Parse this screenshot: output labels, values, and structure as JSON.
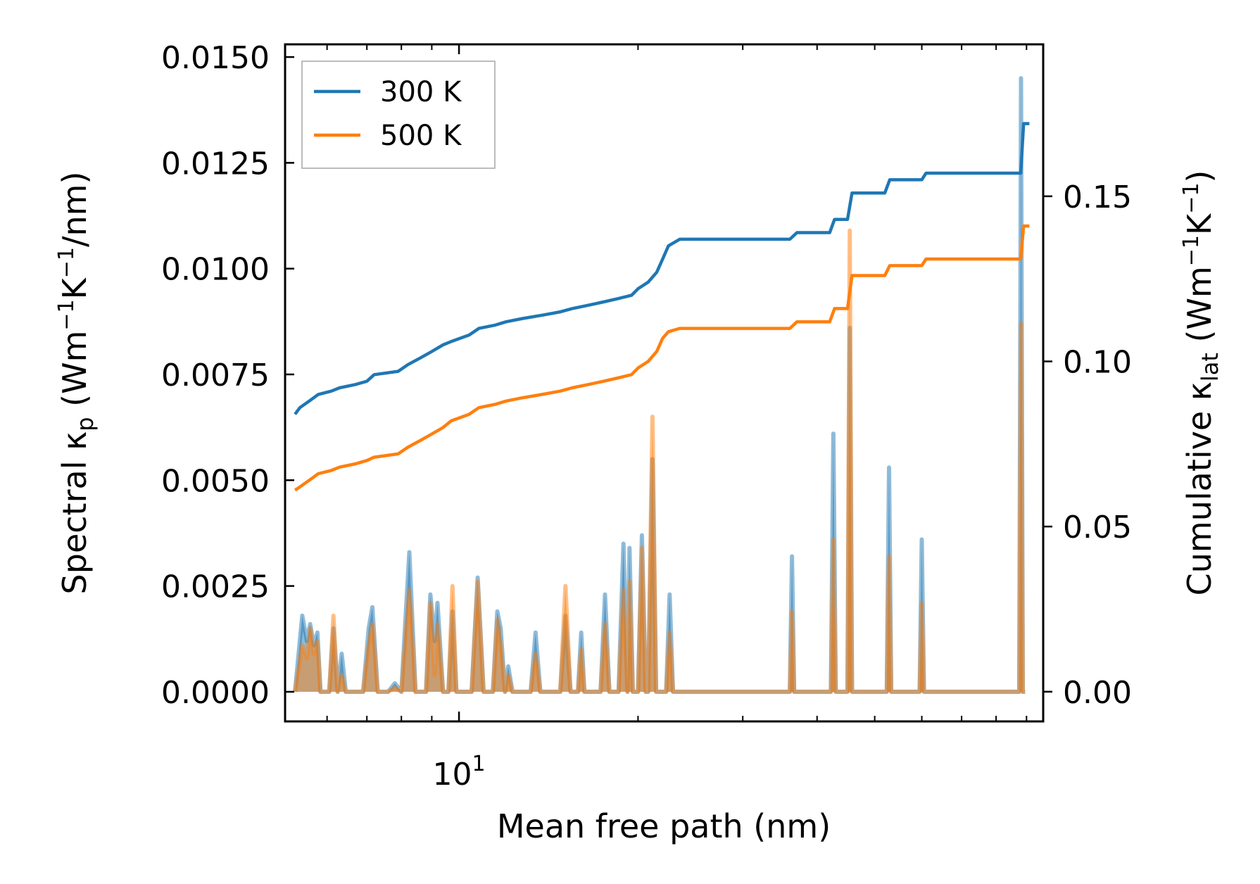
{
  "chart_data": {
    "type": "line",
    "xscale": "log",
    "xlabel": "Mean free path (nm)",
    "xlim": [
      5.1,
      96
    ],
    "x_major_tick_labels": [
      {
        "value": 10,
        "base": "10",
        "exp": "1"
      }
    ],
    "x_minor_ticks": [
      6,
      7,
      8,
      9,
      20,
      30,
      40,
      50,
      60,
      70,
      80,
      90
    ],
    "left_axis": {
      "label_prefix": "Spectral κ",
      "label_sub": "p",
      "label_unit_1": " (Wm",
      "label_sup_1": "−1",
      "label_unit_2": "K",
      "label_sup_2": "−1",
      "label_unit_3": "/nm)",
      "ylim": [
        -0.0007,
        0.0153
      ],
      "ticks": [
        0.0,
        0.0025,
        0.005,
        0.0075,
        0.01,
        0.0125,
        0.015
      ],
      "tick_labels": [
        "0.0000",
        "0.0025",
        "0.0050",
        "0.0075",
        "0.0100",
        "0.0125",
        "0.0150"
      ]
    },
    "right_axis": {
      "label_prefix": "Cumulative κ",
      "label_sub": "lat",
      "label_unit_1": " (Wm",
      "label_sup_1": "−1",
      "label_unit_2": "K",
      "label_sup_2": "−1",
      "label_unit_3": ")",
      "ylim": [
        -0.009,
        0.196
      ],
      "ticks": [
        0.0,
        0.05,
        0.1,
        0.15
      ],
      "tick_labels": [
        "0.00",
        "0.05",
        "0.10",
        "0.15"
      ]
    },
    "legend": {
      "placement": "top-left",
      "entries": [
        "300 K",
        "500 K"
      ]
    },
    "series": [
      {
        "name": "300 K",
        "color": "#1f77b4",
        "cumulative": [
          [
            5.3,
            0.084
          ],
          [
            5.4,
            0.086
          ],
          [
            5.6,
            0.088
          ],
          [
            5.8,
            0.09
          ],
          [
            6.1,
            0.091
          ],
          [
            6.3,
            0.092
          ],
          [
            6.7,
            0.093
          ],
          [
            7.0,
            0.094
          ],
          [
            7.2,
            0.096
          ],
          [
            7.9,
            0.097
          ],
          [
            8.2,
            0.099
          ],
          [
            8.6,
            0.101
          ],
          [
            9.0,
            0.103
          ],
          [
            9.4,
            0.105
          ],
          [
            9.7,
            0.106
          ],
          [
            10.4,
            0.108
          ],
          [
            10.8,
            0.11
          ],
          [
            11.5,
            0.111
          ],
          [
            12.0,
            0.112
          ],
          [
            12.8,
            0.113
          ],
          [
            13.8,
            0.114
          ],
          [
            14.8,
            0.115
          ],
          [
            15.5,
            0.116
          ],
          [
            16.5,
            0.117
          ],
          [
            17.5,
            0.118
          ],
          [
            18.5,
            0.119
          ],
          [
            19.5,
            0.12
          ],
          [
            20.0,
            0.122
          ],
          [
            20.8,
            0.124
          ],
          [
            21.5,
            0.127
          ],
          [
            22.0,
            0.131
          ],
          [
            22.5,
            0.135
          ],
          [
            23.5,
            0.137
          ],
          [
            27.0,
            0.137
          ],
          [
            36.0,
            0.137
          ],
          [
            37.0,
            0.139
          ],
          [
            42.0,
            0.139
          ],
          [
            42.8,
            0.143
          ],
          [
            45.0,
            0.143
          ],
          [
            45.8,
            0.151
          ],
          [
            52.0,
            0.151
          ],
          [
            53.0,
            0.155
          ],
          [
            60.0,
            0.155
          ],
          [
            61.0,
            0.157
          ],
          [
            88.0,
            0.157
          ],
          [
            89.0,
            0.172
          ],
          [
            91.0,
            0.172
          ]
        ],
        "spectral": [
          [
            5.3,
            0.0
          ],
          [
            5.45,
            0.0018
          ],
          [
            5.55,
            0.0012
          ],
          [
            5.62,
            0.0016
          ],
          [
            5.7,
            0.0011
          ],
          [
            5.78,
            0.0014
          ],
          [
            5.85,
            0.0
          ],
          [
            6.05,
            0.0
          ],
          [
            6.15,
            0.0015
          ],
          [
            6.25,
            0.0
          ],
          [
            6.35,
            0.0009
          ],
          [
            6.45,
            0.0
          ],
          [
            6.9,
            0.0
          ],
          [
            7.05,
            0.0015
          ],
          [
            7.15,
            0.002
          ],
          [
            7.3,
            0.0
          ],
          [
            7.6,
            0.0
          ],
          [
            7.8,
            0.0002
          ],
          [
            8.0,
            0.0
          ],
          [
            8.25,
            0.0033
          ],
          [
            8.45,
            0.0
          ],
          [
            8.8,
            0.0
          ],
          [
            8.95,
            0.0023
          ],
          [
            9.1,
            0.0012
          ],
          [
            9.2,
            0.0021
          ],
          [
            9.4,
            0.0
          ],
          [
            9.6,
            0.0
          ],
          [
            9.75,
            0.0019
          ],
          [
            9.9,
            0.0
          ],
          [
            10.5,
            0.0
          ],
          [
            10.75,
            0.0027
          ],
          [
            11.0,
            0.0
          ],
          [
            11.4,
            0.0
          ],
          [
            11.6,
            0.0019
          ],
          [
            11.75,
            0.0015
          ],
          [
            11.95,
            0.0
          ],
          [
            12.1,
            0.0006
          ],
          [
            12.3,
            0.0
          ],
          [
            13.2,
            0.0
          ],
          [
            13.45,
            0.0014
          ],
          [
            13.7,
            0.0
          ],
          [
            14.8,
            0.0
          ],
          [
            15.1,
            0.0018
          ],
          [
            15.4,
            0.0
          ],
          [
            15.85,
            0.0
          ],
          [
            16.05,
            0.0014
          ],
          [
            16.25,
            0.0
          ],
          [
            17.3,
            0.0
          ],
          [
            17.6,
            0.0023
          ],
          [
            17.9,
            0.0
          ],
          [
            18.55,
            0.0
          ],
          [
            18.9,
            0.0035
          ],
          [
            19.2,
            0.0
          ],
          [
            19.35,
            0.0034
          ],
          [
            19.6,
            0.0
          ],
          [
            20.0,
            0.0
          ],
          [
            20.3,
            0.0037
          ],
          [
            20.6,
            0.0
          ],
          [
            20.8,
            0.0
          ],
          [
            21.15,
            0.0055
          ],
          [
            21.45,
            0.0
          ],
          [
            22.3,
            0.0
          ],
          [
            22.6,
            0.0023
          ],
          [
            22.9,
            0.0
          ],
          [
            36.0,
            0.0
          ],
          [
            36.3,
            0.0032
          ],
          [
            36.6,
            0.0
          ],
          [
            42.2,
            0.0
          ],
          [
            42.6,
            0.0061
          ],
          [
            43.0,
            0.0
          ],
          [
            45.0,
            0.0
          ],
          [
            45.4,
            0.0086
          ],
          [
            45.8,
            0.0
          ],
          [
            52.4,
            0.0
          ],
          [
            52.85,
            0.0053
          ],
          [
            53.3,
            0.0
          ],
          [
            59.5,
            0.0
          ],
          [
            60.0,
            0.0036
          ],
          [
            60.5,
            0.0
          ],
          [
            87.5,
            0.0
          ],
          [
            88.1,
            0.0145
          ],
          [
            88.7,
            0.0
          ],
          [
            89.5,
            0.0
          ]
        ]
      },
      {
        "name": "500 K",
        "color": "#ff7f0e",
        "cumulative": [
          [
            5.3,
            0.061
          ],
          [
            5.4,
            0.062
          ],
          [
            5.6,
            0.064
          ],
          [
            5.8,
            0.066
          ],
          [
            6.1,
            0.067
          ],
          [
            6.3,
            0.068
          ],
          [
            6.7,
            0.069
          ],
          [
            7.0,
            0.07
          ],
          [
            7.2,
            0.071
          ],
          [
            7.9,
            0.072
          ],
          [
            8.2,
            0.074
          ],
          [
            8.6,
            0.076
          ],
          [
            9.0,
            0.078
          ],
          [
            9.4,
            0.08
          ],
          [
            9.7,
            0.082
          ],
          [
            10.4,
            0.084
          ],
          [
            10.8,
            0.086
          ],
          [
            11.5,
            0.087
          ],
          [
            12.0,
            0.088
          ],
          [
            12.8,
            0.089
          ],
          [
            13.8,
            0.09
          ],
          [
            14.8,
            0.091
          ],
          [
            15.5,
            0.092
          ],
          [
            16.5,
            0.093
          ],
          [
            17.5,
            0.094
          ],
          [
            18.5,
            0.095
          ],
          [
            19.5,
            0.096
          ],
          [
            20.0,
            0.098
          ],
          [
            20.8,
            0.1
          ],
          [
            21.5,
            0.103
          ],
          [
            22.0,
            0.107
          ],
          [
            22.5,
            0.109
          ],
          [
            23.5,
            0.11
          ],
          [
            27.0,
            0.11
          ],
          [
            36.0,
            0.11
          ],
          [
            37.0,
            0.112
          ],
          [
            42.0,
            0.112
          ],
          [
            42.8,
            0.116
          ],
          [
            45.0,
            0.116
          ],
          [
            45.8,
            0.126
          ],
          [
            52.0,
            0.126
          ],
          [
            53.0,
            0.129
          ],
          [
            60.0,
            0.129
          ],
          [
            61.0,
            0.131
          ],
          [
            88.0,
            0.131
          ],
          [
            89.0,
            0.141
          ],
          [
            91.0,
            0.141
          ]
        ],
        "spectral": [
          [
            5.3,
            0.0
          ],
          [
            5.45,
            0.0011
          ],
          [
            5.55,
            0.0008
          ],
          [
            5.62,
            0.0015
          ],
          [
            5.7,
            0.0009
          ],
          [
            5.78,
            0.0012
          ],
          [
            5.85,
            0.0
          ],
          [
            6.05,
            0.0
          ],
          [
            6.15,
            0.0018
          ],
          [
            6.25,
            0.0
          ],
          [
            6.35,
            0.0004
          ],
          [
            6.45,
            0.0
          ],
          [
            6.9,
            0.0
          ],
          [
            7.05,
            0.0011
          ],
          [
            7.15,
            0.0016
          ],
          [
            7.3,
            0.0
          ],
          [
            7.6,
            0.0
          ],
          [
            7.8,
            0.0001
          ],
          [
            8.0,
            0.0
          ],
          [
            8.25,
            0.0024
          ],
          [
            8.45,
            0.0
          ],
          [
            8.8,
            0.0
          ],
          [
            8.95,
            0.0021
          ],
          [
            9.1,
            0.0004
          ],
          [
            9.2,
            0.0016
          ],
          [
            9.4,
            0.0
          ],
          [
            9.6,
            0.0
          ],
          [
            9.75,
            0.0025
          ],
          [
            9.9,
            0.0
          ],
          [
            10.5,
            0.0
          ],
          [
            10.75,
            0.0026
          ],
          [
            11.0,
            0.0
          ],
          [
            11.4,
            0.0
          ],
          [
            11.6,
            0.0017
          ],
          [
            11.75,
            0.0011
          ],
          [
            11.95,
            0.0
          ],
          [
            12.1,
            0.0004
          ],
          [
            12.3,
            0.0
          ],
          [
            13.2,
            0.0
          ],
          [
            13.45,
            0.0009
          ],
          [
            13.7,
            0.0
          ],
          [
            14.8,
            0.0
          ],
          [
            15.1,
            0.0025
          ],
          [
            15.4,
            0.0
          ],
          [
            15.85,
            0.0
          ],
          [
            16.05,
            0.001
          ],
          [
            16.25,
            0.0
          ],
          [
            17.3,
            0.0
          ],
          [
            17.6,
            0.0016
          ],
          [
            17.9,
            0.0
          ],
          [
            18.55,
            0.0
          ],
          [
            18.9,
            0.0024
          ],
          [
            19.2,
            0.0
          ],
          [
            19.35,
            0.0026
          ],
          [
            19.6,
            0.0
          ],
          [
            20.0,
            0.0
          ],
          [
            20.3,
            0.0034
          ],
          [
            20.6,
            0.0
          ],
          [
            20.8,
            0.0
          ],
          [
            21.15,
            0.0065
          ],
          [
            21.45,
            0.0
          ],
          [
            22.3,
            0.0
          ],
          [
            22.6,
            0.0014
          ],
          [
            22.9,
            0.0
          ],
          [
            36.0,
            0.0
          ],
          [
            36.3,
            0.0019
          ],
          [
            36.6,
            0.0
          ],
          [
            42.2,
            0.0
          ],
          [
            42.6,
            0.0036
          ],
          [
            43.0,
            0.0
          ],
          [
            45.0,
            0.0
          ],
          [
            45.4,
            0.0109
          ],
          [
            45.8,
            0.0
          ],
          [
            52.4,
            0.0
          ],
          [
            52.85,
            0.0032
          ],
          [
            53.3,
            0.0
          ],
          [
            59.5,
            0.0
          ],
          [
            60.0,
            0.0021
          ],
          [
            60.5,
            0.0
          ],
          [
            87.5,
            0.0
          ],
          [
            88.1,
            0.0087
          ],
          [
            88.7,
            0.0
          ],
          [
            89.5,
            0.0
          ]
        ]
      }
    ]
  }
}
